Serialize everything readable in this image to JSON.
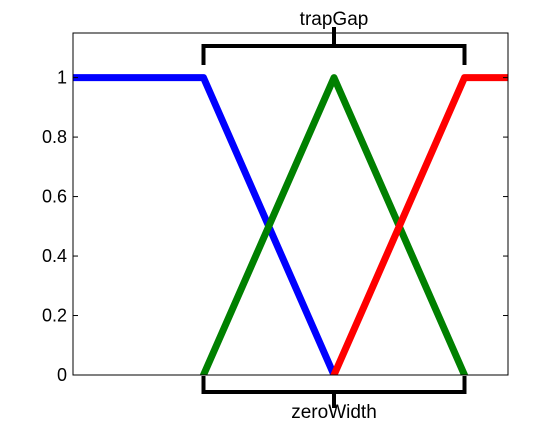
{
  "chart_data": {
    "type": "line",
    "title": "",
    "xlabel": "",
    "ylabel": "",
    "ylim": [
      0,
      1.15
    ],
    "xlim": [
      0,
      10
    ],
    "yticks": [
      "0",
      "0.2",
      "0.4",
      "0.6",
      "0.8",
      "1"
    ],
    "grid": false,
    "series": [
      {
        "color": "#0000ff",
        "x": [
          0,
          3,
          6
        ],
        "y": [
          1,
          1,
          0
        ]
      },
      {
        "color": "#008000",
        "x": [
          3,
          6,
          9
        ],
        "y": [
          0,
          1,
          0
        ]
      },
      {
        "color": "#ff0000",
        "x": [
          6,
          9,
          12
        ],
        "y": [
          0,
          1,
          1
        ]
      }
    ],
    "annotations": [
      {
        "label": "trapGap",
        "from_x": 3,
        "to_x": 9,
        "position": "top"
      },
      {
        "label": "zeroWidth",
        "from_x": 3,
        "to_x": 9,
        "position": "bottom"
      }
    ]
  }
}
